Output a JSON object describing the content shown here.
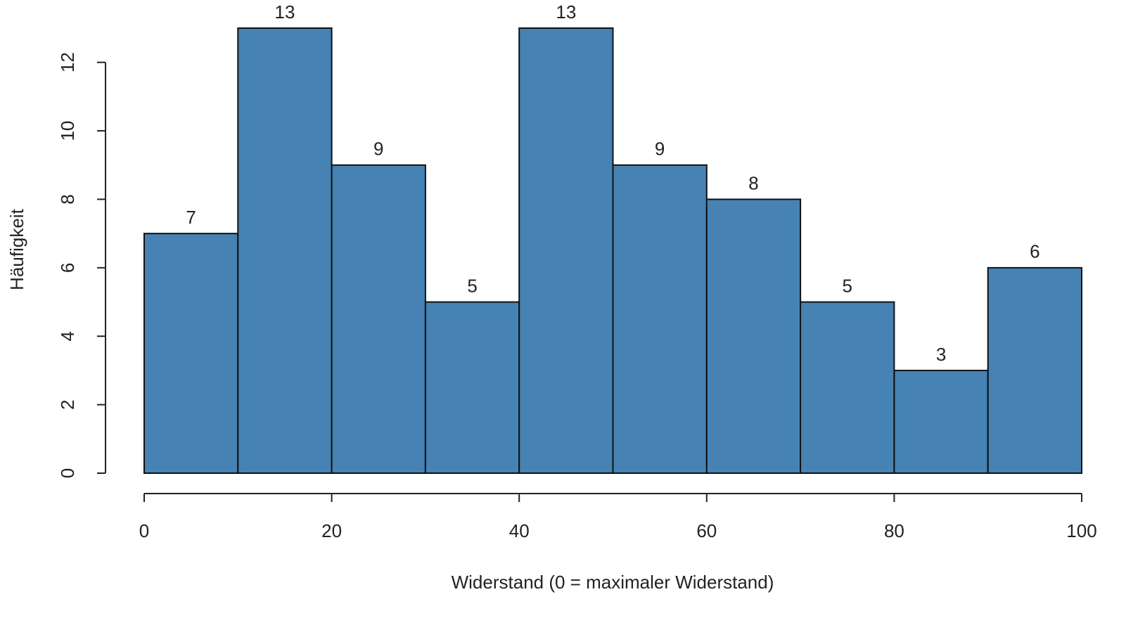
{
  "chart_data": {
    "type": "histogram",
    "xlabel": "Widerstand (0 = maximaler Widerstand)",
    "ylabel": "Häufigkeit",
    "bins": [
      0,
      10,
      20,
      30,
      40,
      50,
      60,
      70,
      80,
      90,
      100
    ],
    "values": [
      7,
      13,
      9,
      5,
      13,
      9,
      8,
      5,
      3,
      6
    ],
    "color": "#4682b4",
    "xlim": [
      0,
      100
    ],
    "xticks": [
      0,
      20,
      40,
      60,
      80,
      100
    ],
    "ylim": [
      0,
      13
    ],
    "yticks": [
      0,
      2,
      4,
      6,
      8,
      10,
      12
    ],
    "grid": false
  }
}
